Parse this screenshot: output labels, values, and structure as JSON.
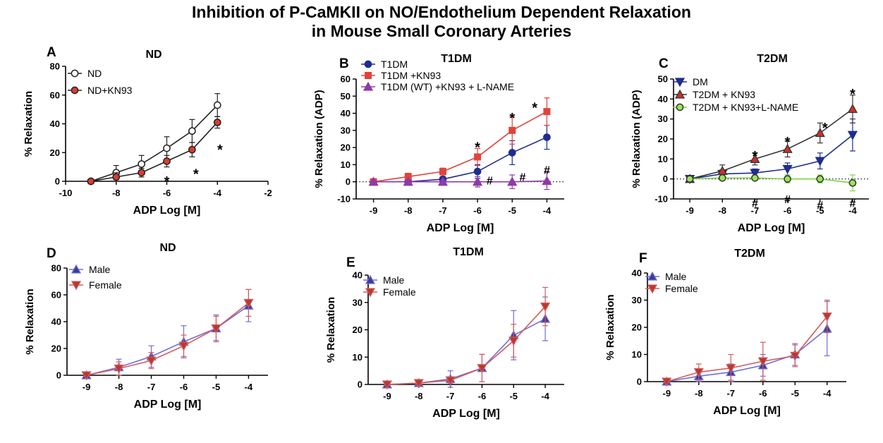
{
  "figure": {
    "title_line1": "Inhibition of P-CaMKII on NO/Endothelium Dependent Relaxation",
    "title_line2": "in Mouse Small Coronary Arteries"
  },
  "chart_data": [
    {
      "id": "A",
      "panel_label": "A",
      "type": "line",
      "title": "ND",
      "xlabel": "ADP Log [M]",
      "ylabel": "% Relaxation",
      "xlim": [
        -10,
        -2
      ],
      "xticks": [
        -10,
        -8,
        -6,
        -4,
        -2
      ],
      "xtick_labels": [
        "-10",
        "-8",
        "-6",
        "-4",
        "-2"
      ],
      "ylim": [
        0,
        80
      ],
      "yticks": [
        0,
        20,
        40,
        60,
        80
      ],
      "ytick_labels": [
        "0",
        "20",
        "40",
        "60",
        "80"
      ],
      "zero_line": false,
      "legend_position": "top-left",
      "x": [
        -9,
        -8,
        -7,
        -6,
        -5,
        -4
      ],
      "series": [
        {
          "name": "ND",
          "color": "#222222",
          "fill": "#ffffff",
          "marker": "circle",
          "values": [
            0,
            6,
            12,
            23,
            35,
            53
          ],
          "errors": [
            0,
            5,
            6,
            8,
            8,
            8
          ]
        },
        {
          "name": "ND+KN93",
          "color": "#222222",
          "fill": "#e03a2f",
          "marker": "circle",
          "values": [
            0,
            3,
            6,
            14,
            22,
            41
          ],
          "errors": [
            0,
            3,
            3,
            4,
            5,
            4
          ]
        }
      ],
      "annotations": [
        {
          "text": "*",
          "x": -6,
          "y": 2
        },
        {
          "text": "*",
          "x": -4.85,
          "y": 7
        },
        {
          "text": "*",
          "x": -3.9,
          "y": 24
        }
      ]
    },
    {
      "id": "B",
      "panel_label": "B",
      "type": "line",
      "title": "T1DM",
      "xlabel": "ADP Log [M]",
      "ylabel": "% Relaxation (ADP)",
      "xlim": [
        -9.5,
        -3.5
      ],
      "xticks": [
        -9,
        -8,
        -7,
        -6,
        -5,
        -4
      ],
      "xtick_labels": [
        "-9",
        "-8",
        "-7",
        "-6",
        "-5",
        "-4"
      ],
      "ylim": [
        -10,
        60
      ],
      "yticks": [
        -10,
        0,
        10,
        20,
        30,
        40,
        50,
        60
      ],
      "ytick_labels": [
        "-10",
        "0",
        "10",
        "20",
        "30",
        "40",
        "50",
        "60"
      ],
      "zero_line": true,
      "legend_position": "top-left",
      "x": [
        -9,
        -8,
        -7,
        -6,
        -5,
        -4
      ],
      "series": [
        {
          "name": "T1DM",
          "color": "#1f2d8f",
          "fill": "#1f2d8f",
          "marker": "circle",
          "values": [
            0,
            0,
            1.5,
            6,
            17,
            26
          ],
          "errors": [
            0,
            1,
            1.5,
            4,
            7,
            7
          ]
        },
        {
          "name": "T1DM  +KN93",
          "color": "#e0443a",
          "fill": "#e0443a",
          "marker": "square",
          "values": [
            0,
            3,
            6,
            14.5,
            30,
            41
          ],
          "errors": [
            0,
            2,
            2,
            5,
            8,
            8
          ]
        },
        {
          "name": "T1DM (WT) +KN93 + L-NAME",
          "color": "#8e3aa8",
          "fill": "#8e3aa8",
          "marker": "triangle-up",
          "values": [
            0,
            0,
            0,
            0,
            0,
            0.5
          ],
          "errors": [
            0,
            1,
            1,
            3,
            4,
            5
          ]
        }
      ],
      "annotations": [
        {
          "text": "*",
          "x": -6,
          "y": 22
        },
        {
          "text": "*",
          "x": -5,
          "y": 39
        },
        {
          "text": "*",
          "x": -4.35,
          "y": 45
        },
        {
          "text": "#",
          "x": -5.65,
          "y": 1
        },
        {
          "text": "#",
          "x": -4.7,
          "y": 3
        },
        {
          "text": "#",
          "x": -4,
          "y": 7
        }
      ]
    },
    {
      "id": "C",
      "panel_label": "C",
      "type": "line",
      "title": "T2DM",
      "xlabel": "ADP Log [M]",
      "ylabel": "% Relaxation (ADP)",
      "xlim": [
        -9.5,
        -3.5
      ],
      "xticks": [
        -9,
        -8,
        -7,
        -6,
        -5,
        -4
      ],
      "xtick_labels": [
        "-9",
        "-8",
        "-7",
        "-6",
        "-5",
        "-4"
      ],
      "ylim": [
        -10,
        50
      ],
      "yticks": [
        -10,
        0,
        10,
        20,
        30,
        40,
        50
      ],
      "ytick_labels": [
        "-10",
        "0",
        "10",
        "20",
        "30",
        "40",
        "50"
      ],
      "zero_line": true,
      "legend_position": "top-left",
      "x": [
        -9,
        -8,
        -7,
        -6,
        -5,
        -4
      ],
      "series": [
        {
          "name": "DM",
          "color": "#1f2d8f",
          "fill": "#1f2d8f",
          "marker": "triangle-down",
          "values": [
            0,
            2.5,
            3,
            5,
            9,
            22
          ],
          "errors": [
            0,
            2,
            2,
            3,
            4,
            8
          ]
        },
        {
          "name": "T2DM + KN93",
          "color": "#333333",
          "fill": "#c8322c",
          "marker": "triangle-up",
          "values": [
            0,
            4,
            10,
            15,
            23,
            35
          ],
          "errors": [
            0,
            3,
            3,
            4,
            5,
            7
          ]
        },
        {
          "name": "T2DM + KN93+L-NAME",
          "color": "#333333",
          "fill": "#9be35a",
          "line_color": "#7fd43f",
          "marker": "circle",
          "values": [
            0,
            0.5,
            0.5,
            0,
            0,
            -2
          ],
          "errors": [
            0,
            1,
            1,
            2,
            2,
            4
          ]
        }
      ],
      "annotations": [
        {
          "text": "*",
          "x": -7,
          "y": 13
        },
        {
          "text": "*",
          "x": -6,
          "y": 20
        },
        {
          "text": "*",
          "x": -4.85,
          "y": 27
        },
        {
          "text": "*",
          "x": -4,
          "y": 44
        },
        {
          "text": "#",
          "x": -7,
          "y": -12
        },
        {
          "text": "#",
          "x": -6,
          "y": -10
        },
        {
          "text": "#",
          "x": -5,
          "y": -13
        },
        {
          "text": "#",
          "x": -4,
          "y": -12
        }
      ]
    },
    {
      "id": "D",
      "panel_label": "D",
      "type": "line",
      "title": "ND",
      "xlabel": "ADP Log [M]",
      "ylabel": "% Relaxation",
      "xlim": [
        -9.6,
        -3.4
      ],
      "xticks": [
        -9,
        -8,
        -7,
        -6,
        -5,
        -4
      ],
      "xtick_labels": [
        "-9",
        "-8",
        "-7",
        "-6",
        "-5",
        "-4"
      ],
      "ylim": [
        0,
        80
      ],
      "yticks": [
        0,
        20,
        40,
        60,
        80
      ],
      "ytick_labels": [
        "0",
        "20",
        "40",
        "60",
        "80"
      ],
      "zero_line": true,
      "legend_position": "top-left",
      "x": [
        -9,
        -8,
        -7,
        -6,
        -5,
        -4
      ],
      "series": [
        {
          "name": "Male",
          "color": "#6f6fd6",
          "fill": "#3a3d8f",
          "marker": "triangle-up",
          "values": [
            0,
            6,
            14,
            25,
            35,
            52
          ],
          "errors": [
            0,
            6,
            8,
            12,
            10,
            12
          ]
        },
        {
          "name": "Female",
          "color": "#d45a5a",
          "fill": "#b8392f",
          "marker": "triangle-down",
          "values": [
            0,
            5,
            11,
            22,
            35,
            54
          ],
          "errors": [
            0,
            5,
            6,
            8,
            9,
            10
          ]
        }
      ],
      "annotations": []
    },
    {
      "id": "E",
      "panel_label": "E",
      "type": "line",
      "title": "T1DM",
      "xlabel": "ADP Log [M]",
      "ylabel": "% Relaxation",
      "xlim": [
        -9.6,
        -3.4
      ],
      "xticks": [
        -9,
        -8,
        -7,
        -6,
        -5,
        -4
      ],
      "xtick_labels": [
        "-9",
        "-8",
        "-7",
        "-6",
        "-5",
        "-4"
      ],
      "ylim": [
        0,
        40
      ],
      "yticks": [
        0,
        10,
        20,
        30,
        40
      ],
      "ytick_labels": [
        "0",
        "10",
        "20",
        "30",
        "40"
      ],
      "zero_line": true,
      "legend_position": "top-left",
      "x": [
        -9,
        -8,
        -7,
        -6,
        -5,
        -4
      ],
      "series": [
        {
          "name": "Male",
          "color": "#6f6fd6",
          "fill": "#3a3d8f",
          "marker": "triangle-up",
          "values": [
            0,
            0.5,
            2,
            6,
            18,
            24
          ],
          "errors": [
            0,
            1,
            3,
            5,
            9,
            8
          ]
        },
        {
          "name": "Female",
          "color": "#d45a5a",
          "fill": "#b8392f",
          "marker": "triangle-down",
          "values": [
            0,
            0.5,
            1.5,
            6,
            16,
            28.5
          ],
          "errors": [
            0,
            1,
            1,
            5,
            6,
            7
          ]
        }
      ],
      "annotations": []
    },
    {
      "id": "F",
      "panel_label": "F",
      "type": "line",
      "title": "T2DM",
      "xlabel": "ADP Log [M]",
      "ylabel": "% Relaxation",
      "xlim": [
        -9.6,
        -3.4
      ],
      "xticks": [
        -9,
        -8,
        -7,
        -6,
        -5,
        -4
      ],
      "xtick_labels": [
        "-9",
        "-8",
        "-7",
        "-6",
        "-5",
        "-4"
      ],
      "ylim": [
        0,
        40
      ],
      "yticks": [
        0,
        10,
        20,
        30,
        40
      ],
      "ytick_labels": [
        "0",
        "10",
        "20",
        "30",
        "40"
      ],
      "zero_line": true,
      "legend_position": "top-left",
      "x": [
        -9,
        -8,
        -7,
        -6,
        -5,
        -4
      ],
      "series": [
        {
          "name": "Male",
          "color": "#6f6fd6",
          "fill": "#3a3d8f",
          "marker": "triangle-up",
          "values": [
            0,
            2,
            3.5,
            6,
            10,
            19.5
          ],
          "errors": [
            0,
            2,
            3,
            4,
            4,
            10
          ]
        },
        {
          "name": "Female",
          "color": "#d45a5a",
          "fill": "#b8392f",
          "marker": "triangle-down",
          "values": [
            0,
            3.5,
            5,
            7.5,
            9.5,
            24
          ],
          "errors": [
            0,
            3,
            5,
            7,
            4,
            6
          ]
        }
      ],
      "annotations": []
    }
  ]
}
